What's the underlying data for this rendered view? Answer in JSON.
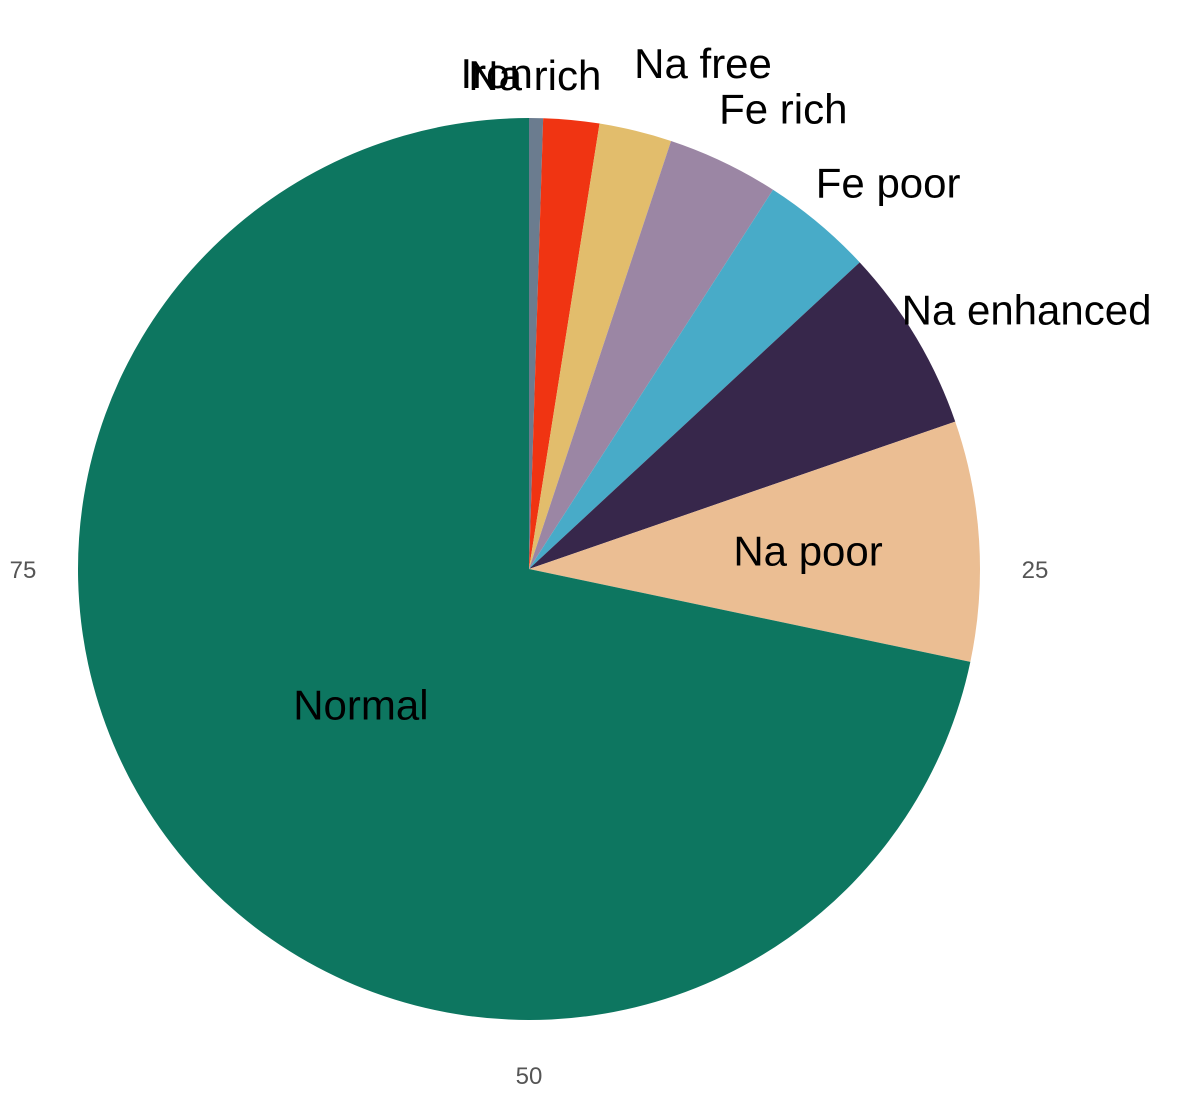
{
  "chart_data": {
    "type": "pie",
    "title": "",
    "start_angle_deg": 0,
    "direction": "clockwise",
    "total": 100,
    "slices": [
      {
        "label": "Iron",
        "value": 0.5,
        "color": "#6B7C8F",
        "label_position": "outside"
      },
      {
        "label": "Na rich",
        "value": 2.0,
        "color": "#F03412",
        "label_position": "outside"
      },
      {
        "label": "Na free",
        "value": 2.6,
        "color": "#E2BD6C",
        "label_position": "outside"
      },
      {
        "label": "Fe rich",
        "value": 4.0,
        "color": "#9B86A4",
        "label_position": "outside"
      },
      {
        "label": "Fe poor",
        "value": 4.0,
        "color": "#48ABC8",
        "label_position": "outside"
      },
      {
        "label": "Na enhanced",
        "value": 6.6,
        "color": "#37274B",
        "label_position": "outside"
      },
      {
        "label": "Na poor",
        "value": 8.6,
        "color": "#EBBE93",
        "label_position": "inside"
      },
      {
        "label": "Normal",
        "value": 71.7,
        "color": "#0D7660",
        "label_position": "inside"
      }
    ],
    "axis_ticks": [
      "25",
      "50",
      "75"
    ],
    "axis_tick_values": [
      25,
      50,
      75
    ],
    "legend": "none",
    "grid": false
  }
}
